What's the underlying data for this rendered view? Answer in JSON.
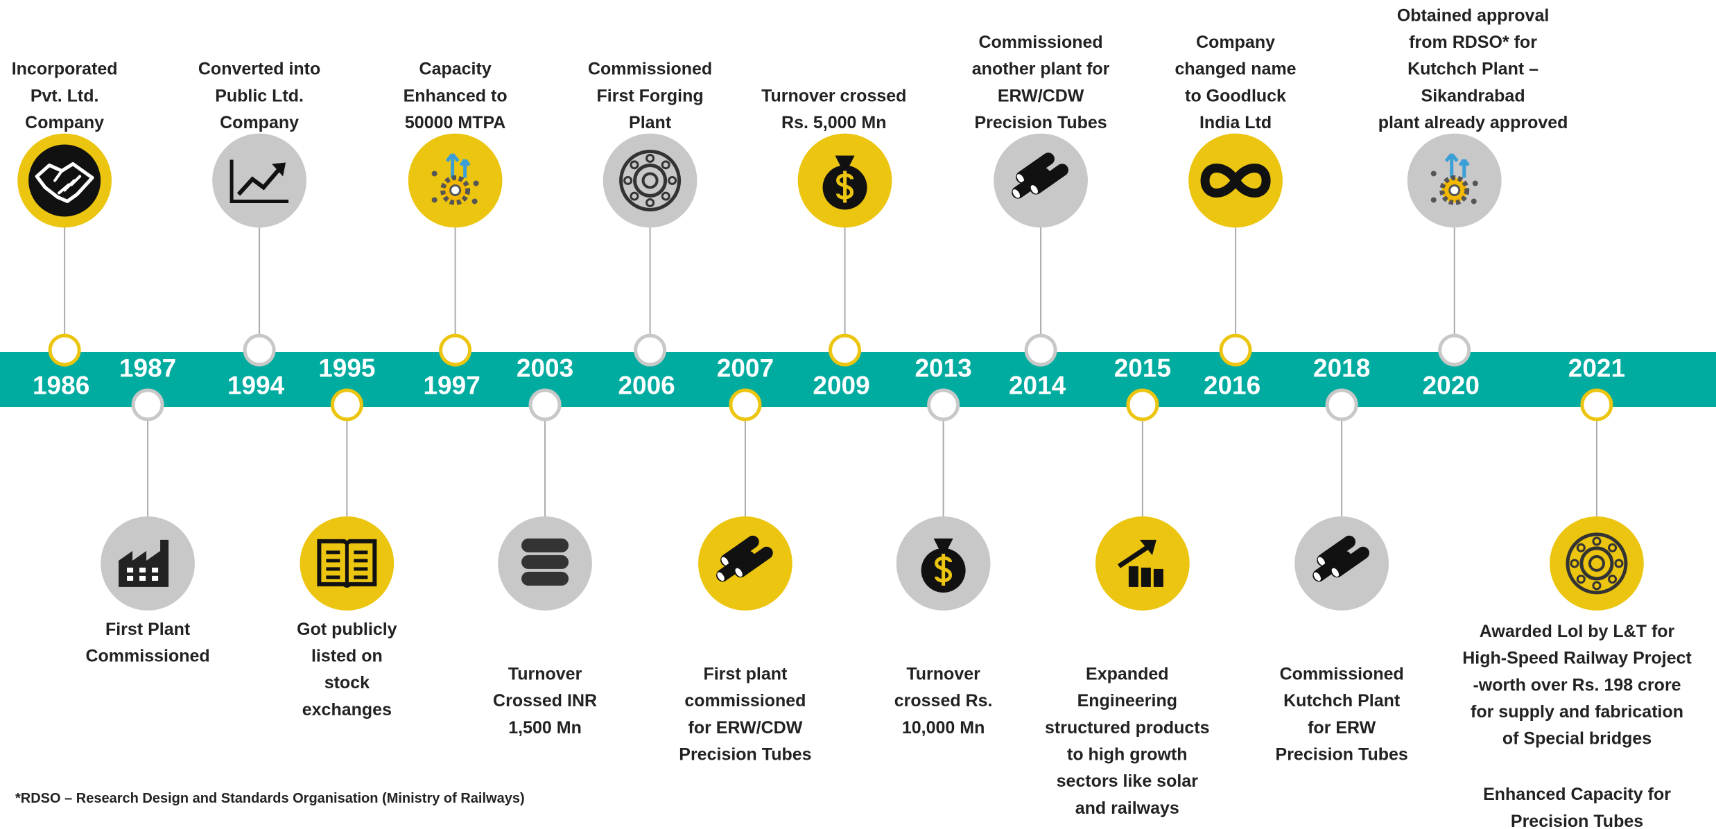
{
  "events": [
    {
      "year": "1986",
      "position": "top",
      "color": "#ecc510",
      "description": [
        "Incorporated",
        "Pvt. Ltd.",
        "Company"
      ]
    },
    {
      "year": "1987",
      "position": "bottom",
      "color": "#c8c8c8",
      "description": [
        "First Plant",
        "Commissioned"
      ]
    },
    {
      "year": "1994",
      "position": "top",
      "color": "#c8c8c8",
      "description": [
        "Converted into",
        "Public Ltd.",
        "Company"
      ]
    },
    {
      "year": "1995",
      "position": "bottom",
      "color": "#ecc510",
      "description": [
        "Got publicly",
        "listed on",
        "stock",
        "exchanges"
      ]
    },
    {
      "year": "1997",
      "position": "top",
      "color": "#ecc510",
      "description": [
        "Capacity",
        "Enhanced to",
        "50000 MTPA"
      ]
    },
    {
      "year": "2003",
      "position": "bottom",
      "color": "#c8c8c8",
      "description": [
        "Turnover",
        "Crossed INR",
        "1,500 Mn"
      ]
    },
    {
      "year": "2006",
      "position": "top",
      "color": "#c8c8c8",
      "description": [
        "Commissioned",
        "First Forging",
        "Plant"
      ]
    },
    {
      "year": "2007",
      "position": "bottom",
      "color": "#ecc510",
      "description": [
        "First plant",
        "commissioned",
        "for ERW/CDW",
        "Precision Tubes"
      ]
    },
    {
      "year": "2009",
      "position": "top",
      "color": "#ecc510",
      "description": [
        "Turnover crossed",
        "Rs. 5,000 Mn"
      ]
    },
    {
      "year": "2013",
      "position": "bottom",
      "color": "#c8c8c8",
      "description": [
        "Turnover",
        "crossed Rs.",
        "10,000 Mn"
      ]
    },
    {
      "year": "2014",
      "position": "top",
      "color": "#c8c8c8",
      "description": [
        "Commissioned",
        "another plant for",
        "ERW/CDW",
        "Precision Tubes"
      ]
    },
    {
      "year": "2015",
      "position": "bottom",
      "color": "#ecc510",
      "description": [
        "Expanded",
        "Engineering",
        "structured products",
        "to high growth",
        "sectors like solar",
        "and railways"
      ]
    },
    {
      "year": "2016",
      "position": "top",
      "color": "#ecc510",
      "description": [
        "Company",
        "changed name",
        "to Goodluck",
        "India Ltd"
      ]
    },
    {
      "year": "2018",
      "position": "bottom",
      "color": "#c8c8c8",
      "description": [
        "Commissioned",
        "Kutchch Plant",
        "for ERW",
        "Precision Tubes"
      ]
    },
    {
      "year": "2020",
      "position": "top",
      "color": "#c8c8c8",
      "description": [
        "Obtained approval",
        "from RDSO* for",
        "Kutchch Plant –",
        "Sikandrabad",
        "plant already approved"
      ]
    },
    {
      "year": "2021",
      "position": "bottom",
      "color": "#ecc510",
      "description": [
        "Awarded Lol by L&T for",
        "High-Speed Railway Project",
        "-worth over Rs. 198 crore",
        "for supply and fabrication",
        "of Special bridges"
      ],
      "note": [
        "Enhanced Capacity for",
        "Precision Tubes"
      ]
    }
  ],
  "footnote": "*RDSO – Research Design and Standards Organisation (Ministry of Railways)"
}
